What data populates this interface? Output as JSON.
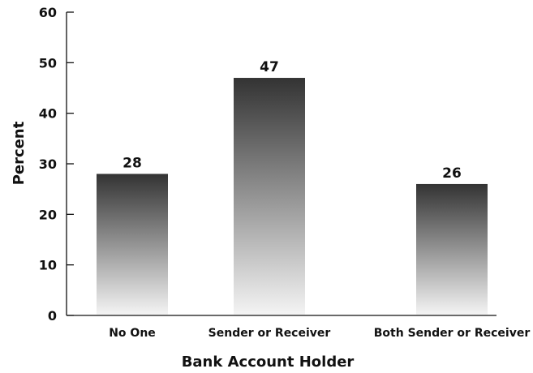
{
  "chart_data": {
    "type": "bar",
    "categories": [
      "No One",
      "Sender or Receiver",
      "Both Sender or Receiver"
    ],
    "values": [
      28,
      47,
      26
    ],
    "title": "",
    "xlabel": "Bank Account Holder",
    "ylabel": "Percent",
    "ylim": [
      0,
      60
    ],
    "yticks": [
      "0",
      "10",
      "20",
      "30",
      "40",
      "50",
      "60"
    ],
    "value_labels": [
      "28",
      "47",
      "26"
    ],
    "grid": false,
    "legend": "none",
    "bar_fill": "vertical gradient from #333333 (top) to #f2f2f2 (bottom)"
  }
}
